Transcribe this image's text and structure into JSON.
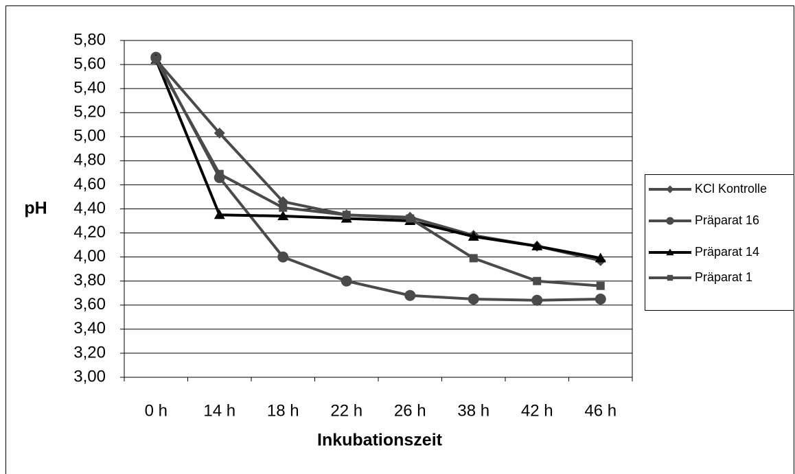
{
  "chart_data": {
    "type": "line",
    "x_label": "Inkubationszeit",
    "y_label": "pH",
    "categories": [
      "0 h",
      "14 h",
      "18 h",
      "22 h",
      "26 h",
      "38 h",
      "42 h",
      "46 h"
    ],
    "series": [
      {
        "name": "KCl Kontrolle",
        "color": "#4a4a4a",
        "marker": "diamond",
        "values": [
          5.64,
          5.03,
          4.46,
          4.35,
          4.33,
          4.18,
          4.09,
          3.97
        ]
      },
      {
        "name": "Präparat 16",
        "color": "#4a4a4a",
        "marker": "circle",
        "values": [
          5.66,
          4.66,
          4.0,
          3.8,
          3.68,
          3.65,
          3.64,
          3.65
        ]
      },
      {
        "name": "Präparat 14",
        "color": "#000000",
        "marker": "triangle",
        "values": [
          5.64,
          4.35,
          4.34,
          4.32,
          4.3,
          4.17,
          4.09,
          3.99
        ]
      },
      {
        "name": "Präparat 1",
        "color": "#4a4a4a",
        "marker": "square",
        "values": [
          5.64,
          4.69,
          4.41,
          4.35,
          4.32,
          3.99,
          3.8,
          3.76
        ]
      }
    ],
    "ylim": [
      3.0,
      5.8
    ],
    "yticks": [
      {
        "value": 3.0,
        "label": "3,00"
      },
      {
        "value": 3.2,
        "label": "3,20"
      },
      {
        "value": 3.4,
        "label": "3,40"
      },
      {
        "value": 3.6,
        "label": "3,60"
      },
      {
        "value": 3.8,
        "label": "3,80"
      },
      {
        "value": 4.0,
        "label": "4,00"
      },
      {
        "value": 4.2,
        "label": "4,20"
      },
      {
        "value": 4.4,
        "label": "4,40"
      },
      {
        "value": 4.6,
        "label": "4,60"
      },
      {
        "value": 4.8,
        "label": "4,80"
      },
      {
        "value": 5.0,
        "label": "5,00"
      },
      {
        "value": 5.2,
        "label": "5,20"
      },
      {
        "value": 5.4,
        "label": "5,40"
      },
      {
        "value": 5.6,
        "label": "5,60"
      },
      {
        "value": 5.8,
        "label": "5,80"
      }
    ],
    "grid": true,
    "legend": "right"
  }
}
